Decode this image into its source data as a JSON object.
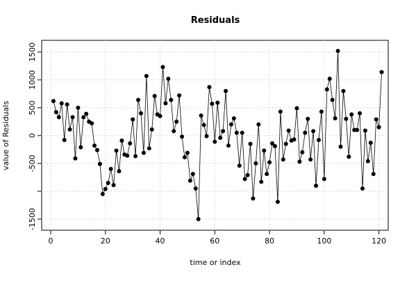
{
  "chart_data": {
    "type": "line",
    "title": "Residuals",
    "x_label": "time or index",
    "y_label": "value of Residuals",
    "x": [
      1,
      2,
      3,
      4,
      5,
      6,
      7,
      8,
      9,
      10,
      11,
      12,
      13,
      14,
      15,
      16,
      17,
      18,
      19,
      20,
      21,
      22,
      23,
      24,
      25,
      26,
      27,
      28,
      29,
      30,
      31,
      32,
      33,
      34,
      35,
      36,
      37,
      38,
      39,
      40,
      41,
      42,
      43,
      44,
      45,
      46,
      47,
      48,
      49,
      50,
      51,
      52,
      53,
      54,
      55,
      56,
      57,
      58,
      59,
      60,
      61,
      62,
      63,
      64,
      65,
      66,
      67,
      68,
      69,
      70,
      71,
      72,
      73,
      74,
      75,
      76,
      77,
      78,
      79,
      80,
      81,
      82,
      83,
      84,
      85,
      86,
      87,
      88,
      89,
      90,
      91,
      92,
      93,
      94,
      95,
      96,
      97,
      98,
      99,
      100,
      101,
      102,
      103,
      104,
      105,
      106,
      107,
      108,
      109,
      110,
      111,
      112,
      113,
      114,
      115,
      116,
      117,
      118,
      119,
      120,
      121
    ],
    "values": [
      620,
      420,
      330,
      580,
      -80,
      560,
      110,
      330,
      -410,
      500,
      -210,
      330,
      390,
      250,
      220,
      -180,
      -260,
      -510,
      -1050,
      -960,
      -850,
      -600,
      -890,
      -270,
      -640,
      -90,
      -340,
      -360,
      -140,
      290,
      -370,
      640,
      400,
      -310,
      1070,
      -230,
      110,
      710,
      380,
      350,
      1230,
      580,
      1020,
      640,
      80,
      250,
      720,
      -20,
      -390,
      -310,
      -810,
      -690,
      -950,
      -1500,
      360,
      190,
      -10,
      870,
      570,
      -110,
      590,
      -40,
      80,
      800,
      -180,
      200,
      310,
      50,
      -540,
      50,
      -780,
      -710,
      -150,
      -1130,
      -500,
      200,
      -830,
      -270,
      -690,
      -480,
      -140,
      -190,
      -1190,
      430,
      -430,
      -150,
      90,
      -90,
      -70,
      490,
      -470,
      -300,
      50,
      300,
      -430,
      80,
      -900,
      -80,
      430,
      -780,
      830,
      1020,
      640,
      310,
      1520,
      -200,
      800,
      300,
      -380,
      380,
      100,
      100,
      400,
      -950,
      90,
      -460,
      -130,
      -690,
      290,
      150,
      1140
    ],
    "color": "#000000",
    "xlim": [
      -3.3,
      123.4
    ],
    "ylim": [
      -1700,
      1710
    ],
    "xticks": [
      0,
      20,
      40,
      60,
      80,
      100,
      120
    ],
    "yticks": [
      1500,
      1000,
      500,
      0,
      -500,
      {
        "value": -1000,
        "label": null
      },
      -1500
    ],
    "grid": true
  }
}
